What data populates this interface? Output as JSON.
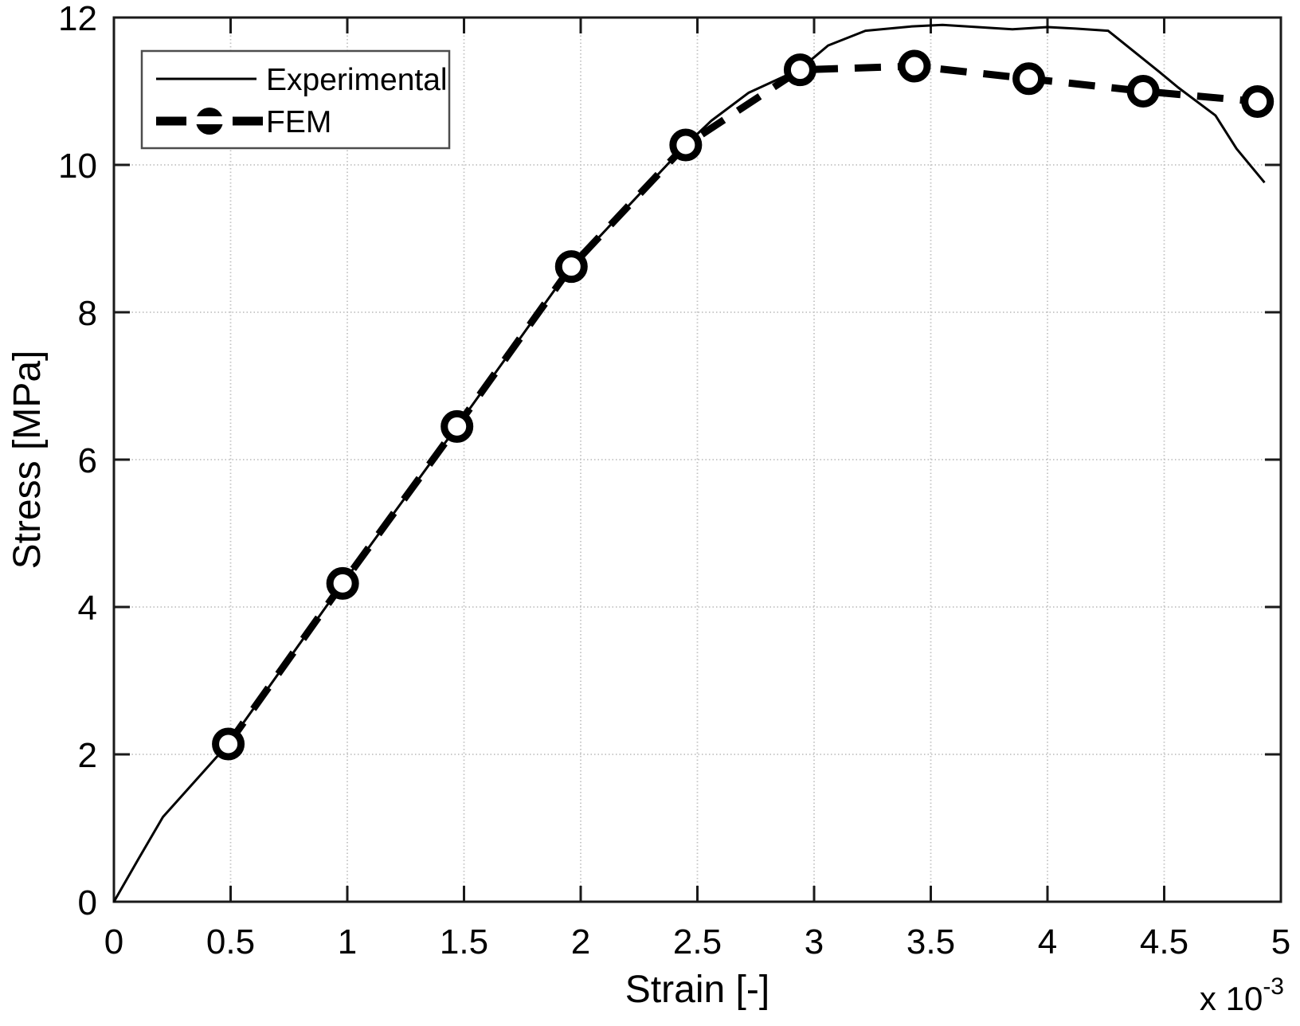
{
  "style": {
    "background": "#ffffff",
    "axis_color": "#1a1a1a",
    "grid_color": "#c2c2c2",
    "series_color": "#000000",
    "legend_border_color": "#4d4d4d",
    "legend_fill": "#ffffff"
  },
  "chart_data": {
    "type": "line",
    "title": "",
    "xlabel": "Strain [-]",
    "ylabel": "Stress [MPa]",
    "x_multiplier_prefix": "x 10",
    "x_multiplier_exponent": "-3",
    "xlim": [
      0,
      5
    ],
    "ylim": [
      0,
      12
    ],
    "xticks": [
      0,
      0.5,
      1,
      1.5,
      2,
      2.5,
      3,
      3.5,
      4,
      4.5,
      5
    ],
    "xtick_labels": [
      "0",
      "0.5",
      "1",
      "1.5",
      "2",
      "2.5",
      "3",
      "3.5",
      "4",
      "4.5",
      "5"
    ],
    "yticks": [
      0,
      2,
      4,
      6,
      8,
      10,
      12
    ],
    "ytick_labels": [
      "0",
      "2",
      "4",
      "6",
      "8",
      "10",
      "12"
    ],
    "grid": true,
    "legend": {
      "position": "top-left",
      "entries": [
        "Experimental",
        "FEM"
      ]
    },
    "series": [
      {
        "name": "Experimental",
        "line_style": "solid",
        "line_width": 3,
        "marker": "none",
        "x": [
          0,
          0.105,
          0.21,
          0.49,
          0.98,
          1.47,
          1.96,
          2.45,
          2.56,
          2.72,
          2.94,
          3.06,
          3.22,
          3.42,
          3.55,
          3.7,
          3.85,
          4.0,
          4.12,
          4.26,
          4.48,
          4.56,
          4.72,
          4.81,
          4.93
        ],
        "y": [
          0,
          0.58,
          1.15,
          2.14,
          4.32,
          6.45,
          8.62,
          10.27,
          10.6,
          10.98,
          11.3,
          11.62,
          11.82,
          11.88,
          11.9,
          11.87,
          11.84,
          11.87,
          11.85,
          11.82,
          11.26,
          11.05,
          10.67,
          10.22,
          9.76
        ]
      },
      {
        "name": "FEM",
        "line_style": "dashed",
        "line_width": 9,
        "marker": "circle",
        "x": [
          0.49,
          0.98,
          1.47,
          1.96,
          2.45,
          2.94,
          3.43,
          3.92,
          4.41,
          4.9
        ],
        "y": [
          2.14,
          4.32,
          6.45,
          8.62,
          10.27,
          11.29,
          11.34,
          11.17,
          11.0,
          10.86
        ]
      }
    ]
  }
}
